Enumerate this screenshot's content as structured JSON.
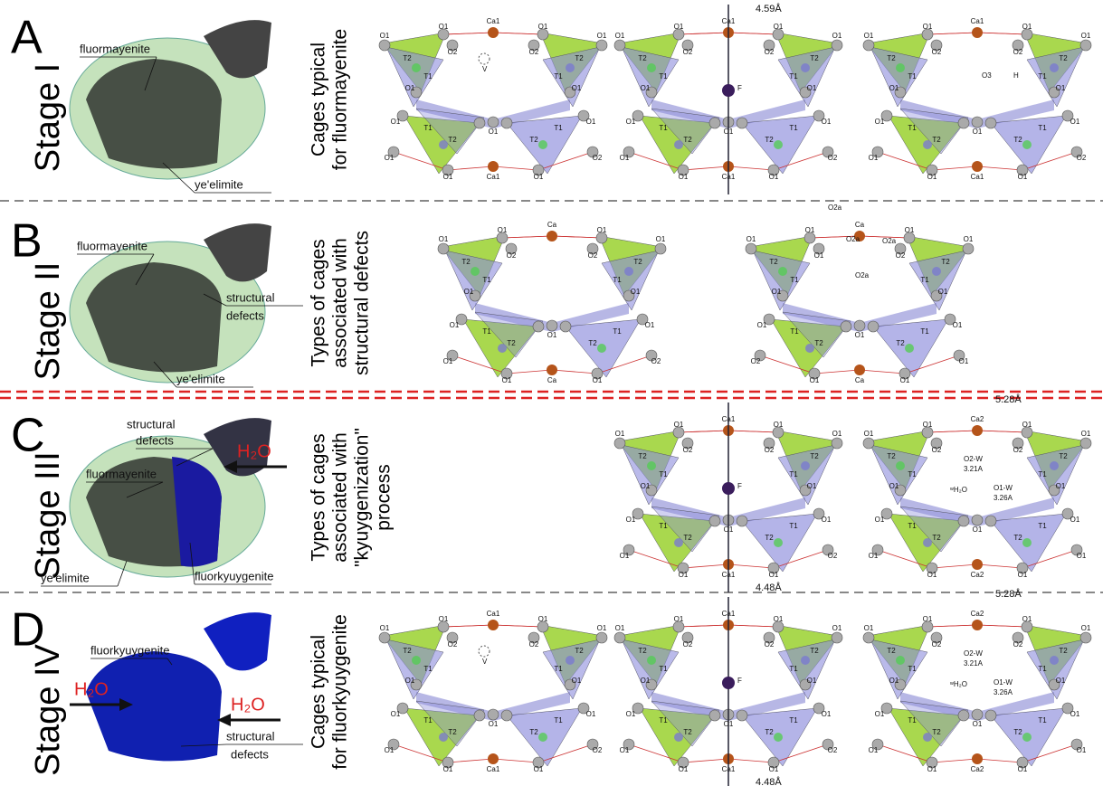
{
  "stages": [
    {
      "letter": "A",
      "stage": "Stage I",
      "caption": [
        "Cages typical",
        "for fluormayenite"
      ],
      "grain_labels": [
        "fluormayenite",
        "ye'elimite"
      ],
      "cages": [
        {
          "labels": [
            "O1",
            "O1",
            "Ca1",
            "O1",
            "O1",
            "O2",
            "O2",
            "T2",
            "T2",
            "T1",
            "T1",
            "O1",
            "O1",
            "O1",
            "O1",
            "T1",
            "T1",
            "T2",
            "T2",
            "O1",
            "O1",
            "O2",
            "O1",
            "Ca1",
            "O1"
          ],
          "extras": [
            "V"
          ]
        },
        {
          "labels": [
            "O1",
            "O1",
            "Ca1",
            "O1",
            "O1",
            "O2",
            "O2",
            "T2",
            "T2",
            "T1",
            "T1",
            "O1",
            "O1",
            "O1",
            "O1",
            "T1",
            "T1",
            "T2",
            "T2",
            "O1",
            "O1",
            "O2",
            "O1",
            "Ca1",
            "O1"
          ],
          "extras": [
            "4.59Å",
            "F"
          ]
        },
        {
          "labels": [
            "O1",
            "O1",
            "Ca1",
            "O1",
            "O1",
            "O2",
            "O2",
            "T2",
            "T2",
            "T1",
            "T1",
            "O1",
            "O1",
            "O1",
            "O1",
            "T1",
            "T1",
            "T2",
            "T2",
            "O1",
            "O1",
            "O2",
            "O1",
            "Ca1",
            "O1"
          ],
          "extras": [
            "O3",
            "H"
          ]
        }
      ]
    },
    {
      "letter": "B",
      "stage": "Stage II",
      "caption": [
        "Types of cages",
        "associated with",
        "structural defects"
      ],
      "grain_labels": [
        "fluormayenite",
        "structural",
        "defects",
        "ye'elimite"
      ],
      "cages": [
        {
          "labels": [
            "O1",
            "O1",
            "Ca",
            "O1",
            "O1",
            "O2",
            "O2",
            "T2",
            "T2",
            "T1",
            "T1",
            "O1",
            "O1",
            "O1",
            "O1",
            "T1",
            "T1",
            "T2",
            "T2",
            "O1",
            "O1",
            "O2",
            "O1",
            "Ca",
            "O1"
          ],
          "extras": []
        },
        {
          "labels": [
            "O1",
            "O1",
            "Ca",
            "O1",
            "O1",
            "O1",
            "O2",
            "T2",
            "T2",
            "T1",
            "T1",
            "O1",
            "O1",
            "O1",
            "O1",
            "T1",
            "T1",
            "T2",
            "T2",
            "O1",
            "O2",
            "O1",
            "O1",
            "Ca",
            "O1"
          ],
          "extras": [
            "O2a",
            "O2a",
            "O2a",
            "O2a"
          ]
        }
      ]
    },
    {
      "letter": "C",
      "stage": "Stage III",
      "caption": [
        "Types of cages",
        "associated with",
        "\"kyuygenization\"",
        "process"
      ],
      "grain_labels": [
        "structural",
        "defects",
        "fluormayenite",
        "ye'elimite",
        "fluorkyuygenite",
        "H₂O"
      ],
      "cages": [
        {
          "labels": [
            "O1",
            "O1",
            "Ca1",
            "O1",
            "O1",
            "O2",
            "O2",
            "T2",
            "T2",
            "T1",
            "T1",
            "O1",
            "O1",
            "O1",
            "O1",
            "T1",
            "T1",
            "T2",
            "T2",
            "O1",
            "O1",
            "O2",
            "O1",
            "Ca1",
            "O1"
          ],
          "extras": [
            "F",
            "4.48Å"
          ]
        },
        {
          "labels": [
            "O1",
            "O1",
            "Ca2",
            "O1",
            "O1",
            "O2",
            "O2",
            "T2",
            "T2",
            "T1",
            "T1",
            "O1",
            "O1",
            "O1",
            "O1",
            "T1",
            "T1",
            "T2",
            "T2",
            "O1",
            "O1",
            "O1",
            "O1",
            "Ca2",
            "O1"
          ],
          "extras": [
            "5.28Å",
            "O2-W",
            "3.21A",
            "O1-W",
            "3.26A",
            "ʷH₂O"
          ]
        }
      ]
    },
    {
      "letter": "D",
      "stage": "Stage IV",
      "caption": [
        "Cages typical",
        "for fluorkyuygenite"
      ],
      "grain_labels": [
        "fluorkyuygenite",
        "H₂O",
        "H₂O",
        "structural",
        "defects"
      ],
      "cages": [
        {
          "labels": [
            "O1",
            "O1",
            "Ca1",
            "O1",
            "O1",
            "O2",
            "O2",
            "T2",
            "T2",
            "T1",
            "T1",
            "O1",
            "O1",
            "O1",
            "O1",
            "T1",
            "T1",
            "T2",
            "T2",
            "O1",
            "O1",
            "O2",
            "O1",
            "Ca1",
            "O1"
          ],
          "extras": [
            "V"
          ]
        },
        {
          "labels": [
            "O1",
            "O1",
            "Ca1",
            "O1",
            "O1",
            "O2",
            "O2",
            "T2",
            "T2",
            "T1",
            "T1",
            "O1",
            "O1",
            "O1",
            "O1",
            "T1",
            "T1",
            "T2",
            "T2",
            "O1",
            "O1",
            "O2",
            "O1",
            "Ca1",
            "O1"
          ],
          "extras": [
            "F",
            "4.48Å"
          ]
        },
        {
          "labels": [
            "O1",
            "O1",
            "Ca2",
            "O1",
            "O1",
            "O2",
            "O2",
            "T2",
            "T2",
            "T1",
            "T1",
            "O1",
            "O1",
            "O1",
            "O1",
            "T1",
            "T1",
            "T2",
            "T2",
            "O1",
            "O1",
            "O1",
            "O1",
            "Ca2",
            "O1"
          ],
          "extras": [
            "5.28Å",
            "O2-W",
            "3.21A",
            "O1-W",
            "3.26A",
            "ʷH₂O"
          ]
        }
      ]
    }
  ]
}
